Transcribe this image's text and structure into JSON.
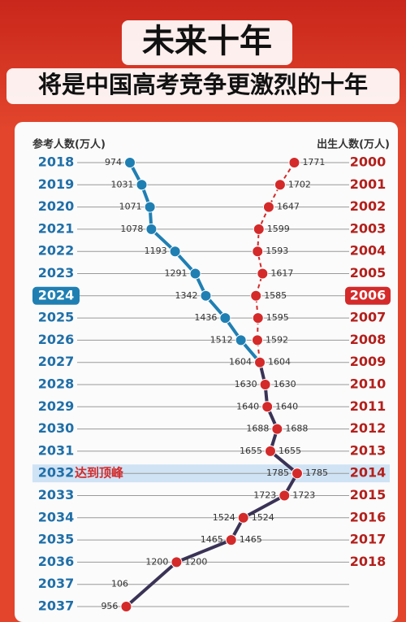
{
  "chart_data": {
    "type": "dual-line",
    "title": "未来十年",
    "subtitle": "将是中国高考竞争更激烈的十年",
    "left_axis_label": "参考人数(万人)",
    "right_axis_label": "出生人数(万人)",
    "categories": [
      "2018",
      "2019",
      "2020",
      "2021",
      "2022",
      "2023",
      "2024",
      "2025",
      "2026",
      "2027",
      "2028",
      "2029",
      "2030",
      "2031",
      "2032",
      "2033",
      "2034",
      "2035",
      "2036",
      "2037",
      "2037"
    ],
    "right_categories": [
      "2000",
      "2001",
      "2002",
      "2003",
      "2004",
      "2005",
      "2006",
      "2007",
      "2008",
      "2009",
      "2010",
      "2011",
      "2012",
      "2013",
      "2014",
      "2015",
      "2016",
      "2017",
      "2018",
      null,
      null
    ],
    "highlight_index": 6,
    "peak_index": 14,
    "peak_note": "达到顶峰",
    "partial_label": "106",
    "merged_color": "#3b3356",
    "xlim": [
      718,
      2037
    ],
    "series": [
      {
        "name": "参考人数",
        "color": "#1f7fb3",
        "values": [
          974,
          1031,
          1071,
          1078,
          1193,
          1291,
          1342,
          1436,
          1512,
          1604,
          1630,
          1640,
          1688,
          1655,
          1785,
          1723,
          1524,
          1465,
          1200,
          null,
          956
        ]
      },
      {
        "name": "出生人数",
        "color": "#d42a2a",
        "values": [
          1771,
          1702,
          1647,
          1599,
          1593,
          1617,
          1585,
          1595,
          1592,
          1604,
          1630,
          1640,
          1688,
          1655,
          1785,
          1723,
          1524,
          1465,
          1200,
          null,
          null
        ]
      }
    ]
  }
}
